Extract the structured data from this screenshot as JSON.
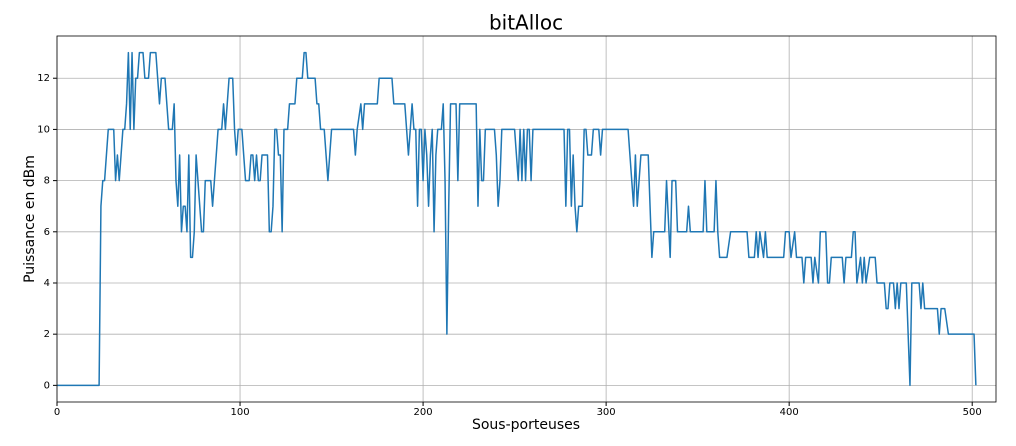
{
  "chart_data": {
    "type": "line",
    "title": "bitAlloc",
    "xlabel": "Sous-porteuses",
    "ylabel": "Puissance en dBm",
    "color": "#1f77b4",
    "grid": true,
    "xlim": [
      0,
      513
    ],
    "ylim": [
      -0.65,
      13.65
    ],
    "xticks": [
      0,
      100,
      200,
      300,
      400,
      500
    ],
    "yticks": [
      0,
      2,
      4,
      6,
      8,
      10,
      12
    ],
    "x": [
      0,
      23,
      24,
      25,
      26,
      28,
      31,
      32,
      33,
      34,
      35,
      36,
      37,
      38,
      39,
      40,
      41,
      42,
      43,
      44,
      45,
      47,
      48,
      50,
      51,
      54,
      55,
      56,
      57,
      59,
      60,
      61,
      63,
      64,
      65,
      66,
      67,
      68,
      69,
      70,
      71,
      72,
      73,
      74,
      75,
      76,
      77,
      78,
      79,
      80,
      81,
      84,
      85,
      86,
      87,
      88,
      90,
      91,
      92,
      93,
      94,
      96,
      97,
      98,
      99,
      101,
      102,
      103,
      105,
      106,
      107,
      108,
      109,
      110,
      111,
      112,
      115,
      116,
      117,
      118,
      119,
      120,
      121,
      122,
      123,
      124,
      126,
      127,
      130,
      131,
      134,
      135,
      136,
      137,
      140,
      141,
      142,
      143,
      144,
      146,
      147,
      148,
      149,
      150,
      162,
      163,
      164,
      166,
      167,
      168,
      175,
      176,
      183,
      184,
      190,
      191,
      192,
      193,
      194,
      195,
      196,
      197,
      198,
      199,
      200,
      201,
      202,
      203,
      204,
      205,
      206,
      207,
      208,
      210,
      211,
      212,
      213,
      214,
      215,
      218,
      219,
      220,
      229,
      230,
      231,
      232,
      233,
      234,
      239,
      240,
      241,
      242,
      243,
      250,
      251,
      252,
      253,
      254,
      255,
      256,
      257,
      258,
      259,
      260,
      277,
      278,
      279,
      280,
      281,
      282,
      283,
      284,
      285,
      287,
      288,
      289,
      290,
      292,
      293,
      296,
      297,
      298,
      300,
      312,
      313,
      315,
      316,
      317,
      319,
      323,
      325,
      326,
      332,
      333,
      335,
      336,
      338,
      339,
      344,
      345,
      346,
      353,
      354,
      355,
      359,
      360,
      361,
      362,
      366,
      368,
      377,
      378,
      381,
      382,
      383,
      384,
      386,
      387,
      388,
      397,
      398,
      400,
      401,
      403,
      404,
      407,
      408,
      409,
      412,
      413,
      414,
      416,
      417,
      420,
      421,
      422,
      423,
      429,
      430,
      431,
      434,
      435,
      436,
      437,
      439,
      440,
      441,
      442,
      444,
      447,
      448,
      452,
      453,
      454,
      455,
      457,
      458,
      459,
      460,
      461,
      464,
      466,
      467,
      471,
      472,
      473,
      474,
      481,
      482,
      483,
      485,
      487,
      501,
      502
    ],
    "values": [
      0,
      0,
      7,
      8,
      8,
      10,
      10,
      8,
      9,
      8,
      9,
      10,
      10,
      11,
      13,
      10,
      13,
      10,
      12,
      12,
      13,
      13,
      12,
      12,
      13,
      13,
      12,
      11,
      12,
      12,
      11,
      10,
      10,
      11,
      8,
      7,
      9,
      6,
      7,
      7,
      6,
      9,
      5,
      5,
      6,
      9,
      8,
      7,
      6,
      6,
      8,
      8,
      7,
      8,
      9,
      10,
      10,
      11,
      10,
      11,
      12,
      12,
      10,
      9,
      10,
      10,
      9,
      8,
      8,
      9,
      9,
      8,
      9,
      8,
      8,
      9,
      9,
      6,
      6,
      7,
      10,
      10,
      9,
      9,
      6,
      10,
      10,
      11,
      11,
      12,
      12,
      13,
      13,
      12,
      12,
      12,
      11,
      11,
      10,
      10,
      9,
      8,
      9,
      10,
      10,
      9,
      10,
      11,
      10,
      11,
      11,
      12,
      12,
      11,
      11,
      10,
      9,
      10,
      11,
      10,
      10,
      7,
      10,
      10,
      8,
      10,
      9,
      7,
      9,
      10,
      6,
      9,
      10,
      10,
      11,
      8,
      2,
      7,
      11,
      11,
      8,
      11,
      11,
      7,
      10,
      8,
      8,
      10,
      10,
      9,
      7,
      8,
      10,
      10,
      9,
      8,
      10,
      8,
      10,
      8,
      10,
      10,
      8,
      10,
      10,
      7,
      10,
      10,
      7,
      9,
      7,
      6,
      7,
      7,
      10,
      10,
      9,
      9,
      10,
      10,
      9,
      10,
      10,
      10,
      9,
      7,
      9,
      7,
      9,
      9,
      5,
      6,
      6,
      8,
      5,
      8,
      8,
      6,
      6,
      7,
      6,
      6,
      8,
      6,
      6,
      8,
      6,
      5,
      5,
      6,
      6,
      5,
      5,
      6,
      5,
      6,
      5,
      6,
      5,
      5,
      6,
      6,
      5,
      6,
      5,
      5,
      4,
      5,
      5,
      4,
      5,
      4,
      6,
      6,
      4,
      4,
      5,
      5,
      4,
      5,
      5,
      6,
      6,
      4,
      5,
      4,
      5,
      4,
      5,
      5,
      4,
      4,
      3,
      3,
      4,
      4,
      3,
      4,
      3,
      4,
      4,
      0,
      4,
      4,
      3,
      4,
      3,
      3,
      2,
      3,
      3,
      2,
      2,
      0
    ]
  }
}
